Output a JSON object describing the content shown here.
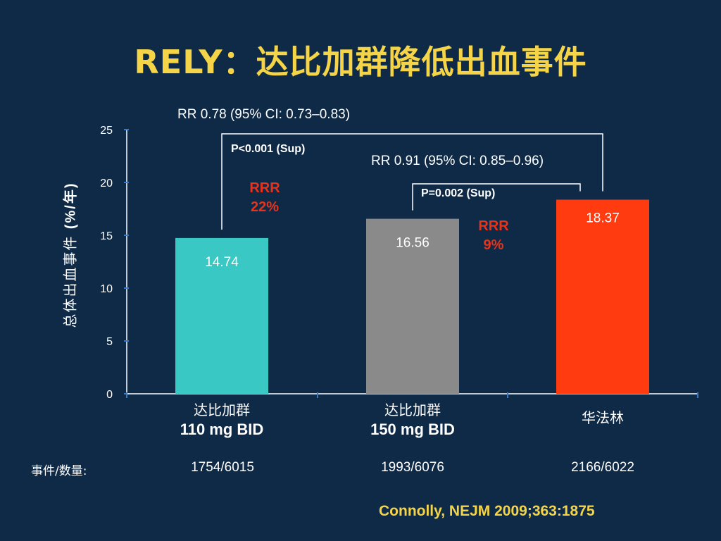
{
  "title": "RELY：达比加群降低出血事件",
  "chart_data": {
    "type": "bar",
    "categories": [
      "达比加群 110 mg BID",
      "达比加群 150 mg BID",
      "华法林"
    ],
    "values": [
      14.74,
      16.56,
      18.37
    ],
    "value_labels": [
      "14.74",
      "16.56",
      "18.37"
    ],
    "colors": [
      "#3ac8c4",
      "#8a8a8a",
      "#ff3b0f"
    ],
    "ylim": [
      0,
      25
    ],
    "yticks": [
      "0",
      "5",
      "10",
      "15",
      "20",
      "25"
    ],
    "ylabel_cn": "总体出血事件",
    "ylabel_unit": "(%/年)",
    "grid": false
  },
  "categories": [
    {
      "name_cn": "达比加群",
      "dose": "110 mg BID"
    },
    {
      "name_cn": "达比加群",
      "dose": "150 mg BID"
    },
    {
      "name_cn": "华法林",
      "dose": ""
    }
  ],
  "comparisons": [
    {
      "rr": "RR 0.78 (95% CI: 0.73–0.83)",
      "p": "P<0.001 (Sup)",
      "rrr_label": "RRR",
      "rrr_value": "22%"
    },
    {
      "rr": "RR 0.91 (95% CI: 0.85–0.96)",
      "p": "P=0.002 (Sup)",
      "rrr_label": "RRR",
      "rrr_value": "9%"
    }
  ],
  "events": {
    "header": "事件/数量:",
    "values": [
      "1754/6015",
      "1993/6076",
      "2166/6022"
    ]
  },
  "citation": "Connolly, NEJM 2009;363:1875"
}
